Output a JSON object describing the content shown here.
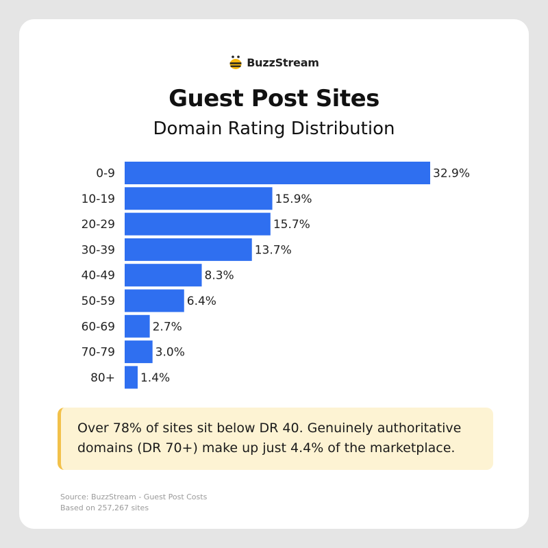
{
  "brand": {
    "name": "BuzzStream",
    "icon": "bee-icon"
  },
  "title": "Guest Post Sites",
  "subtitle": "Domain Rating Distribution",
  "chart_data": {
    "type": "bar",
    "orientation": "horizontal",
    "title": "Guest Post Sites",
    "subtitle": "Domain Rating Distribution",
    "xlabel": "",
    "ylabel": "",
    "categories": [
      "0-9",
      "10-19",
      "20-29",
      "30-39",
      "40-49",
      "50-59",
      "60-69",
      "70-79",
      "80+"
    ],
    "values": [
      32.9,
      15.9,
      15.7,
      13.7,
      8.3,
      6.4,
      2.7,
      3.0,
      1.4
    ],
    "data_labels": [
      "32.9%",
      "15.9%",
      "15.7%",
      "13.7%",
      "8.3%",
      "6.4%",
      "2.7%",
      "3.0%",
      "1.4%"
    ],
    "xlim": [
      0,
      32.9
    ],
    "grid": false,
    "legend": "none",
    "bar_color": "#2f6ff0"
  },
  "callout": {
    "line1": "Over 78% of sites sit below DR 40. Genuinely authoritative",
    "line2": "domains (DR 70+) make up just 4.4% of the marketplace."
  },
  "source": {
    "line1": "Source: BuzzStream - Guest Post Costs",
    "line2": "Based on 257,267 sites"
  },
  "colors": {
    "background": "#e5e5e5",
    "card": "#ffffff",
    "bar": "#2f6ff0",
    "callout_bg": "#fdf3d3",
    "callout_accent": "#f2c14a"
  }
}
